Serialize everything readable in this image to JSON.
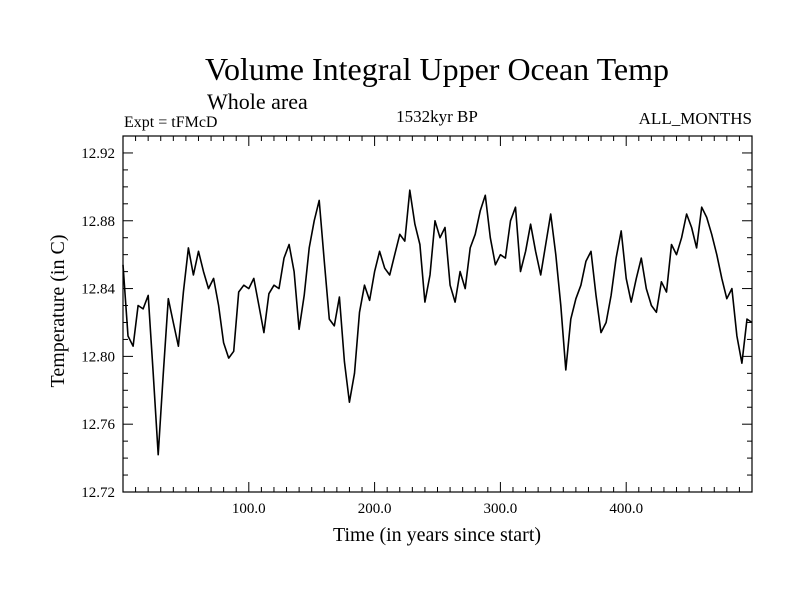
{
  "chart_data": {
    "type": "line",
    "title": "Volume Integral Upper Ocean Temp",
    "subtitle": "Whole area",
    "experiment": "Expt = tFMcD",
    "period": "1532kyr BP",
    "months": "ALL_MONTHS",
    "xlabel": "Time (in years since start)",
    "ylabel": "Temperature (in C)",
    "xlim": [
      0,
      500
    ],
    "ylim": [
      12.72,
      12.93
    ],
    "x_ticks": [
      100,
      200,
      300,
      400
    ],
    "x_tick_labels": [
      "100.0",
      "200.0",
      "300.0",
      "400.0"
    ],
    "y_ticks": [
      12.72,
      12.76,
      12.8,
      12.84,
      12.88,
      12.92
    ],
    "y_tick_labels": [
      "12.72",
      "12.76",
      "12.80",
      "12.84",
      "12.88",
      "12.92"
    ],
    "line_color": "#000000",
    "series": [
      {
        "name": "Temperature",
        "x": [
          0,
          4,
          8,
          12,
          16,
          20,
          24,
          28,
          32,
          36,
          40,
          44,
          48,
          52,
          56,
          60,
          64,
          68,
          72,
          76,
          80,
          84,
          88,
          92,
          96,
          100,
          104,
          108,
          112,
          116,
          120,
          124,
          128,
          132,
          136,
          140,
          144,
          148,
          152,
          156,
          160,
          164,
          168,
          172,
          176,
          180,
          184,
          188,
          192,
          196,
          200,
          204,
          208,
          212,
          216,
          220,
          224,
          228,
          232,
          236,
          240,
          244,
          248,
          252,
          256,
          260,
          264,
          268,
          272,
          276,
          280,
          284,
          288,
          292,
          296,
          300,
          304,
          308,
          312,
          316,
          320,
          324,
          328,
          332,
          336,
          340,
          344,
          348,
          352,
          356,
          360,
          364,
          368,
          372,
          376,
          380,
          384,
          388,
          392,
          396,
          400,
          404,
          408,
          412,
          416,
          420,
          424,
          428,
          432,
          436,
          440,
          444,
          448,
          452,
          456,
          460,
          464,
          468,
          472,
          476,
          480,
          484,
          488,
          492,
          496,
          500
        ],
        "values": [
          12.854,
          12.812,
          12.806,
          12.83,
          12.828,
          12.836,
          12.79,
          12.742,
          12.79,
          12.834,
          12.82,
          12.806,
          12.838,
          12.864,
          12.848,
          12.862,
          12.85,
          12.84,
          12.846,
          12.83,
          12.808,
          12.799,
          12.803,
          12.838,
          12.842,
          12.84,
          12.846,
          12.83,
          12.814,
          12.837,
          12.842,
          12.84,
          12.858,
          12.866,
          12.85,
          12.816,
          12.836,
          12.864,
          12.88,
          12.892,
          12.856,
          12.822,
          12.818,
          12.835,
          12.797,
          12.773,
          12.79,
          12.826,
          12.842,
          12.833,
          12.85,
          12.862,
          12.852,
          12.848,
          12.86,
          12.872,
          12.868,
          12.898,
          12.878,
          12.866,
          12.832,
          12.848,
          12.88,
          12.87,
          12.876,
          12.842,
          12.832,
          12.85,
          12.84,
          12.864,
          12.872,
          12.886,
          12.895,
          12.87,
          12.854,
          12.86,
          12.858,
          12.88,
          12.888,
          12.85,
          12.862,
          12.878,
          12.862,
          12.848,
          12.866,
          12.884,
          12.86,
          12.83,
          12.792,
          12.822,
          12.834,
          12.842,
          12.856,
          12.862,
          12.836,
          12.814,
          12.82,
          12.836,
          12.858,
          12.874,
          12.846,
          12.832,
          12.846,
          12.858,
          12.84,
          12.83,
          12.826,
          12.844,
          12.838,
          12.866,
          12.86,
          12.87,
          12.884,
          12.876,
          12.864,
          12.888,
          12.882,
          12.872,
          12.86,
          12.846,
          12.834,
          12.84,
          12.812,
          12.796,
          12.822,
          12.82
        ]
      }
    ]
  }
}
